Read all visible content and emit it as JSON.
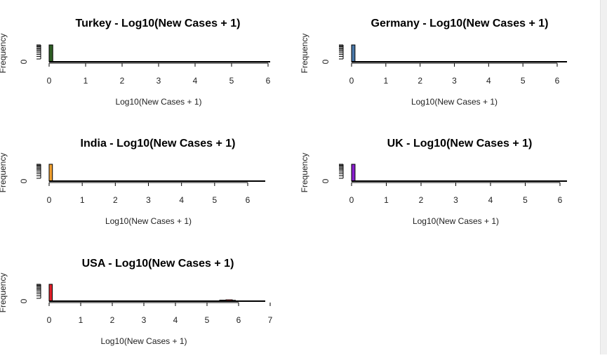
{
  "chart_data": [
    {
      "type": "bar",
      "title": "Turkey - Log10(New Cases + 1)",
      "xlabel": "Log10(New Cases + 1)",
      "ylabel": "Frequency",
      "x_ticks": [
        "0",
        "1",
        "2",
        "3",
        "4",
        "5",
        "6"
      ],
      "y_tick": "0",
      "xlim": [
        0,
        6
      ],
      "bins": [
        {
          "start": 0,
          "end": 0.1,
          "height": 1
        }
      ],
      "color": "#2e5e24"
    },
    {
      "type": "bar",
      "title": "Germany - Log10(New Cases + 1)",
      "xlabel": "Log10(New Cases + 1)",
      "ylabel": "Frequency",
      "x_ticks": [
        "0",
        "1",
        "2",
        "3",
        "4",
        "5",
        "6"
      ],
      "y_tick": "0",
      "xlim": [
        0,
        6
      ],
      "bins": [
        {
          "start": 0,
          "end": 0.1,
          "height": 1
        }
      ],
      "color": "#4a78aa"
    },
    {
      "type": "bar",
      "title": "India - Log10(New Cases + 1)",
      "xlabel": "Log10(New Cases + 1)",
      "ylabel": "Frequency",
      "x_ticks": [
        "0",
        "1",
        "2",
        "3",
        "4",
        "5",
        "6"
      ],
      "y_tick": "0",
      "xlim": [
        0,
        6
      ],
      "bins": [
        {
          "start": 0,
          "end": 0.1,
          "height": 1
        }
      ],
      "color": "#f0a030"
    },
    {
      "type": "bar",
      "title": "UK - Log10(New Cases + 1)",
      "xlabel": "Log10(New Cases + 1)",
      "ylabel": "Frequency",
      "x_ticks": [
        "0",
        "1",
        "2",
        "3",
        "4",
        "5",
        "6"
      ],
      "y_tick": "0",
      "xlim": [
        0,
        6
      ],
      "bins": [
        {
          "start": 0,
          "end": 0.1,
          "height": 1
        }
      ],
      "color": "#8a1fd0"
    },
    {
      "type": "bar",
      "title": "USA - Log10(New Cases + 1)",
      "xlabel": "Log10(New Cases + 1)",
      "ylabel": "Frequency",
      "x_ticks": [
        "0",
        "1",
        "2",
        "3",
        "4",
        "5",
        "6",
        "7"
      ],
      "y_tick": "0",
      "xlim": [
        0,
        7
      ],
      "bins": [
        {
          "start": 0,
          "end": 0.1,
          "height": 1
        },
        {
          "start": 5.4,
          "end": 5.6,
          "height": 0.06
        },
        {
          "start": 5.6,
          "end": 5.8,
          "height": 0.08
        },
        {
          "start": 5.8,
          "end": 5.9,
          "height": 0.05
        }
      ],
      "color": "#e0202a"
    }
  ]
}
